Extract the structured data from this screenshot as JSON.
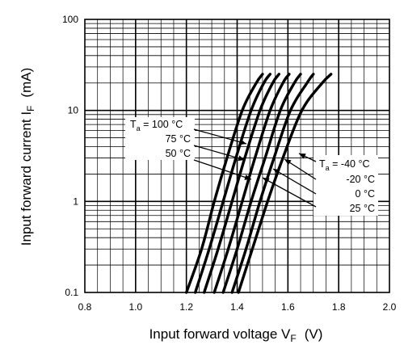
{
  "chart_data": {
    "type": "line",
    "title": "",
    "xlabel": "Input forward voltage  V",
    "xlabel_sub": "F",
    "xlabel_unit": "(V)",
    "ylabel": "Input forward current  I",
    "ylabel_sub": "F",
    "ylabel_unit": "(mA)",
    "xlim": [
      0.8,
      2.0
    ],
    "ylim": [
      0.1,
      100
    ],
    "yscale": "log",
    "grid": true,
    "x_ticks": [
      {
        "value": 0.8,
        "label": "0.8"
      },
      {
        "value": 1.0,
        "label": "1.0"
      },
      {
        "value": 1.2,
        "label": "1.2"
      },
      {
        "value": 1.4,
        "label": "1.4"
      },
      {
        "value": 1.6,
        "label": "1.6"
      },
      {
        "value": 1.8,
        "label": "1.8"
      },
      {
        "value": 2.0,
        "label": "2.0"
      }
    ],
    "y_ticks": [
      {
        "value": 0.1,
        "label": "0.1"
      },
      {
        "value": 1,
        "label": "1"
      },
      {
        "value": 10,
        "label": "10"
      },
      {
        "value": 100,
        "label": "100"
      }
    ],
    "series": [
      {
        "id": "t100",
        "label": "T",
        "label_sub": "a",
        "label_rest": " = 100 °C",
        "points": [
          [
            1.2,
            0.1
          ],
          [
            1.26,
            0.3
          ],
          [
            1.31,
            1
          ],
          [
            1.36,
            3
          ],
          [
            1.42,
            10
          ],
          [
            1.475,
            20
          ],
          [
            1.5,
            25
          ]
        ]
      },
      {
        "id": "t75",
        "label": "75 °C",
        "points": [
          [
            1.235,
            0.1
          ],
          [
            1.29,
            0.3
          ],
          [
            1.345,
            1
          ],
          [
            1.395,
            3
          ],
          [
            1.455,
            10
          ],
          [
            1.505,
            20
          ],
          [
            1.53,
            25
          ]
        ]
      },
      {
        "id": "t50",
        "label": "50 °C",
        "points": [
          [
            1.27,
            0.1
          ],
          [
            1.325,
            0.3
          ],
          [
            1.38,
            1
          ],
          [
            1.43,
            3
          ],
          [
            1.49,
            10
          ],
          [
            1.54,
            20
          ],
          [
            1.565,
            25
          ]
        ]
      },
      {
        "id": "t25",
        "label": "25 °C",
        "points": [
          [
            1.31,
            0.1
          ],
          [
            1.365,
            0.3
          ],
          [
            1.42,
            1
          ],
          [
            1.47,
            3
          ],
          [
            1.53,
            10
          ],
          [
            1.58,
            20
          ],
          [
            1.605,
            25
          ]
        ]
      },
      {
        "id": "t0",
        "label": "0 °C",
        "points": [
          [
            1.345,
            0.1
          ],
          [
            1.4,
            0.3
          ],
          [
            1.455,
            1
          ],
          [
            1.51,
            3
          ],
          [
            1.57,
            10
          ],
          [
            1.625,
            20
          ],
          [
            1.65,
            25
          ]
        ]
      },
      {
        "id": "tm20",
        "label": "-20 °C",
        "points": [
          [
            1.38,
            0.1
          ],
          [
            1.435,
            0.3
          ],
          [
            1.49,
            1
          ],
          [
            1.545,
            3
          ],
          [
            1.61,
            10
          ],
          [
            1.675,
            20
          ],
          [
            1.7,
            25
          ]
        ]
      },
      {
        "id": "tm40",
        "label": "T",
        "label_sub": "a",
        "label_rest": " = -40 °C",
        "points": [
          [
            1.405,
            0.1
          ],
          [
            1.46,
            0.3
          ],
          [
            1.52,
            1
          ],
          [
            1.58,
            3
          ],
          [
            1.655,
            10
          ],
          [
            1.735,
            20
          ],
          [
            1.77,
            25
          ]
        ]
      }
    ]
  }
}
